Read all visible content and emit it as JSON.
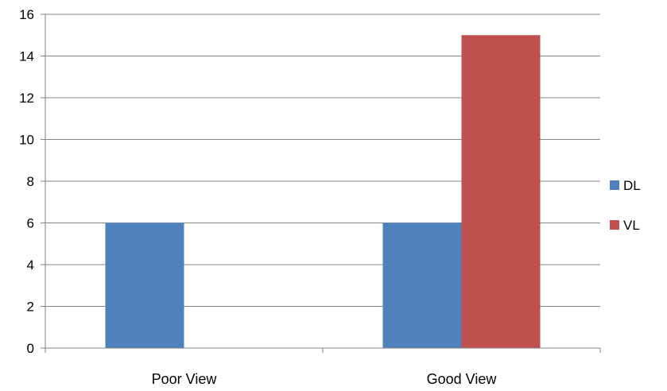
{
  "chart_data": {
    "type": "bar",
    "title": "",
    "xlabel": "",
    "ylabel": "",
    "categories": [
      "Poor View",
      "Good View"
    ],
    "series": [
      {
        "name": "DL",
        "color": "#4F81BD",
        "values": [
          6,
          6
        ]
      },
      {
        "name": "VL",
        "color": "#C0504D",
        "values": [
          0,
          15
        ]
      }
    ],
    "ylim": [
      0,
      16
    ],
    "yticks": [
      "0",
      "2",
      "4",
      "6",
      "8",
      "10",
      "12",
      "14",
      "16"
    ],
    "grid": true,
    "legend_position": "right"
  }
}
